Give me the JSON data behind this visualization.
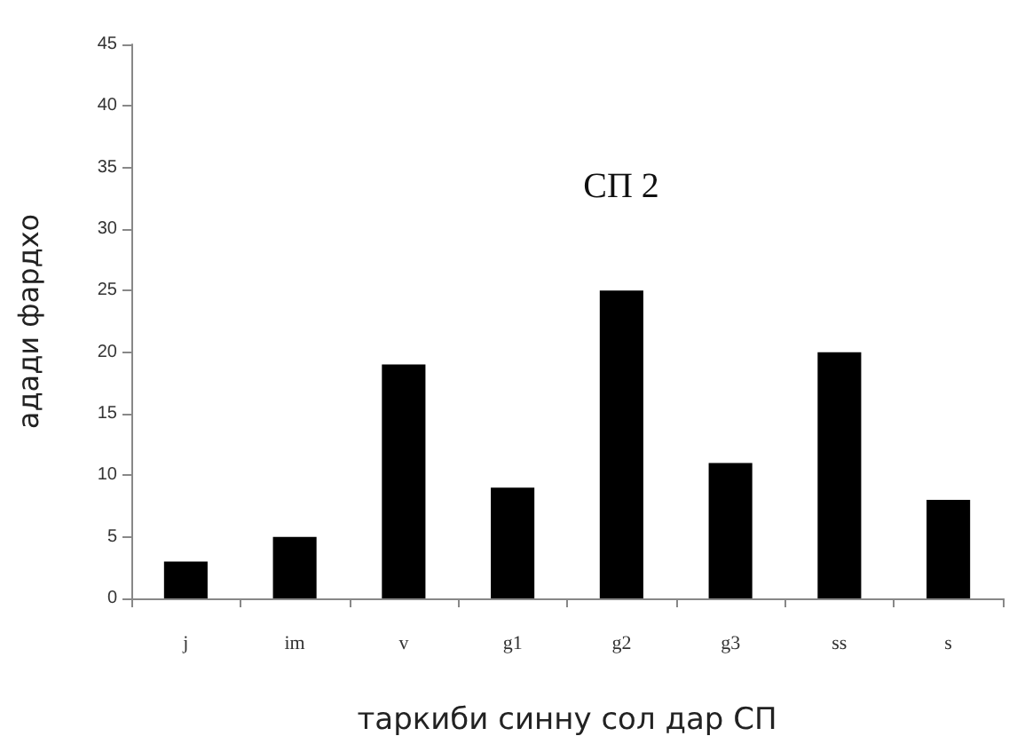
{
  "chart_data": {
    "type": "bar",
    "title": "СП 2",
    "xlabel": "таркиби синну сол дар СП",
    "ylabel": "адади фардхо",
    "categories": [
      "j",
      "im",
      "v",
      "g1",
      "g2",
      "g3",
      "ss",
      "s"
    ],
    "values": [
      3,
      5,
      19,
      9,
      25,
      11,
      20,
      8
    ],
    "color": "#000000",
    "ylim": [
      0,
      45
    ],
    "yticks": [
      0,
      5,
      10,
      15,
      20,
      25,
      30,
      35,
      40,
      45
    ],
    "grid": false
  }
}
